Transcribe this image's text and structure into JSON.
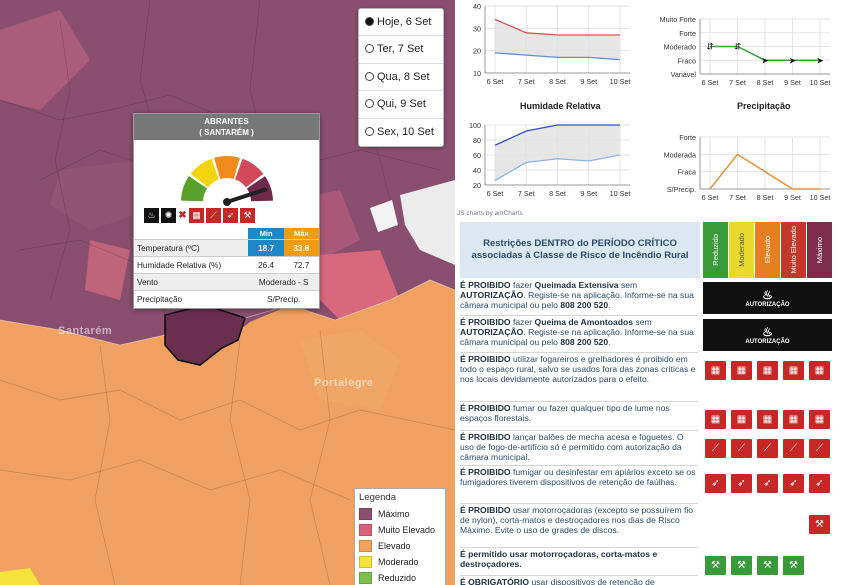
{
  "map": {
    "date_options": [
      {
        "label": "Hoje, 6 Set",
        "selected": true
      },
      {
        "label": "Ter, 7 Set",
        "selected": false
      },
      {
        "label": "Qua, 8 Set",
        "selected": false
      },
      {
        "label": "Qui, 9 Set",
        "selected": false
      },
      {
        "label": "Sex, 10 Set",
        "selected": false
      }
    ],
    "place_labels": [
      "Santarém",
      "Portalegre"
    ],
    "popup": {
      "municipality": "ABRANTES",
      "district": "( SANTARÉM )",
      "col_min": "Min",
      "col_max": "Máx",
      "rows": [
        {
          "label": "Temperatura (ºC)",
          "min": "18.7",
          "max": "33.8"
        },
        {
          "label": "Humidade Relativa (%)",
          "min": "26.4",
          "max": "72.7"
        }
      ],
      "wind_label": "Vento",
      "wind_value": "Moderado - S",
      "precip_label": "Precipitação",
      "precip_value": "S/Precip.",
      "risk_level_index": 4
    },
    "legend": {
      "title": "Legenda",
      "items": [
        {
          "label": "Máximo",
          "color": "#8a4f6f"
        },
        {
          "label": "Muito Elevado",
          "color": "#d9607a"
        },
        {
          "label": "Elevado",
          "color": "#f2a25a"
        },
        {
          "label": "Moderado",
          "color": "#f5e23c"
        },
        {
          "label": "Reduzido",
          "color": "#7cbf4a"
        }
      ]
    }
  },
  "charts": {
    "credit": "JS charts by amCharts",
    "x_labels": [
      "6 Set",
      "7 Set",
      "8 Set",
      "9 Set",
      "10 Set"
    ],
    "temperature": {
      "title": "",
      "y_ticks": [
        "40",
        "30",
        "20",
        "10"
      ],
      "min": [
        19,
        18,
        17,
        17,
        16
      ],
      "max": [
        34,
        28,
        27,
        27,
        27
      ]
    },
    "wind": {
      "title": "",
      "y_ticks": [
        "Muito Forte",
        "Forte",
        "Moderado",
        "Fraco",
        "Variável"
      ],
      "levels": [
        2,
        2,
        1,
        1,
        1
      ]
    },
    "humidity": {
      "title": "Humidade Relativa",
      "y_ticks": [
        "100",
        "80",
        "60",
        "40",
        "20"
      ],
      "min": [
        26,
        50,
        55,
        52,
        60
      ],
      "max": [
        73,
        92,
        100,
        100,
        100
      ]
    },
    "precip": {
      "title": "Precipitação",
      "y_ticks": [
        "Forte",
        "Moderada",
        "Fraca",
        "S/Precip."
      ],
      "levels": [
        0,
        2,
        1,
        0,
        0
      ]
    }
  },
  "chart_data": [
    {
      "type": "area",
      "title": "",
      "categories": [
        "6 Set",
        "7 Set",
        "8 Set",
        "9 Set",
        "10 Set"
      ],
      "series": [
        {
          "name": "",
          "values": [
            19,
            18,
            17,
            17,
            16
          ]
        },
        {
          "name": "",
          "values": [
            34,
            28,
            27,
            27,
            27
          ]
        }
      ],
      "ylim": [
        10,
        40
      ]
    },
    {
      "type": "line",
      "title": "",
      "categories": [
        "6 Set",
        "7 Set",
        "8 Set",
        "9 Set",
        "10 Set"
      ],
      "values": [
        "Moderado",
        "Moderado",
        "Fraco",
        "Fraco",
        "Fraco"
      ]
    },
    {
      "type": "area",
      "title": "Humidade Relativa",
      "categories": [
        "6 Set",
        "7 Set",
        "8 Set",
        "9 Set",
        "10 Set"
      ],
      "series": [
        {
          "name": "",
          "values": [
            26,
            50,
            55,
            52,
            60
          ]
        },
        {
          "name": "",
          "values": [
            73,
            92,
            100,
            100,
            100
          ]
        }
      ],
      "ylim": [
        20,
        100
      ]
    },
    {
      "type": "line",
      "title": "Precipitação",
      "categories": [
        "6 Set",
        "7 Set",
        "8 Set",
        "9 Set",
        "10 Set"
      ],
      "values": [
        "S/Precip.",
        "Moderada",
        "Fraca",
        "S/Precip.",
        "S/Precip."
      ]
    }
  ],
  "restrictions": {
    "header": "Restrições DENTRO do PERÍODO CRÍTICO associadas à Classe de Risco de Incêndio Rural",
    "levels": [
      {
        "label": "Reduzido",
        "color": "#3a9a3a"
      },
      {
        "label": "Moderado",
        "color": "#e8d92a"
      },
      {
        "label": "Elevado",
        "color": "#e67e22"
      },
      {
        "label": "Muito Elevado",
        "color": "#c0392b"
      },
      {
        "label": "Máximo",
        "color": "#7b2d4a"
      }
    ],
    "auth_label": "AUTORIZAÇÃO",
    "rows": [
      {
        "html_parts": [
          "É PROIBIDO",
          " fazer ",
          "Queimada Extensiva",
          " sem ",
          "AUTORIZAÇÃO",
          ". Registe-se na aplicação. Informe-se na sua câmara municipal ou pelo ",
          "808 200 520",
          "."
        ],
        "icons": "auth"
      },
      {
        "html_parts": [
          "É PROIBIDO",
          " fazer ",
          "Queima de Amontoados",
          " sem ",
          "AUTORIZAÇÃO",
          ". Registe-se na aplicação. Informe-se na sua câmara municipal ou pelo ",
          "808 200 520",
          "."
        ],
        "icons": "auth"
      },
      {
        "html_parts": [
          "É PROIBIDO",
          " utilizar fogareiros e grelhadores é proibido em todo o espaço rural, salvo se usados fora das zonas críticas e nos locais devidamente autorizados para o efeito.",
          "",
          "",
          "",
          "",
          ""
        ],
        "icons": [
          1,
          1,
          1,
          1,
          1
        ]
      },
      {
        "html_parts": [
          "É PROIBIDO",
          " fumar ou fazer qualquer tipo de lume nos espaços florestais.",
          "",
          "",
          "",
          "",
          ""
        ],
        "icons": [
          1,
          1,
          1,
          1,
          1
        ]
      },
      {
        "html_parts": [
          "É PROIBIDO",
          " lançar balões de mecha acesa e foguetes. O uso de fogo-de-artifício só é permitido com autorização da câmara municipal.",
          "",
          "",
          "",
          "",
          ""
        ],
        "icons": [
          1,
          1,
          1,
          1,
          1
        ]
      },
      {
        "html_parts": [
          "É PROIBIDO",
          " fumigar ou desinfestar em apiários exceto se os fumigadores tiverem dispositivos de retenção de faúlhas.",
          "",
          "",
          "",
          "",
          ""
        ],
        "icons": [
          1,
          1,
          1,
          1,
          1
        ]
      },
      {
        "html_parts": [
          "É PROIBIDO",
          " usar motorroçadoras (excepto se possuírem fio de nylon), corta-matos e destroçadores nos dias de Risco Máximo. Evite o uso de grades de discos.",
          "",
          "",
          "",
          "",
          ""
        ],
        "icons": [
          0,
          0,
          0,
          0,
          1
        ]
      },
      {
        "html_parts": [
          "É permitido usar motorroçadoras, corta-matos e destroçadores.",
          "",
          "",
          "",
          "",
          "",
          ""
        ],
        "icons": [
          2,
          2,
          2,
          2,
          0
        ]
      },
      {
        "html_parts": [
          "É OBRIGATÓRIO",
          " usar dispositivos de retenção de",
          "",
          "",
          "",
          "",
          ""
        ],
        "icons": []
      }
    ]
  }
}
